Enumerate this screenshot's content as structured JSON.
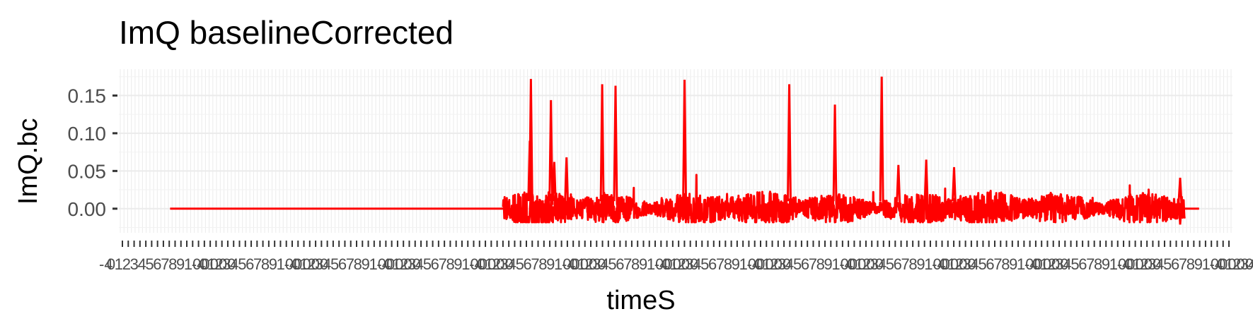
{
  "chart_data": {
    "type": "line",
    "title": "ImQ baselineCorrected",
    "xlabel": "timeS",
    "ylabel": "ImQ.bc",
    "ylim": [
      -0.032,
      0.185
    ],
    "yticks": [
      0.0,
      0.05,
      0.1,
      0.15
    ],
    "ytick_labels": [
      "0.00",
      "0.05",
      "0.10",
      "0.15"
    ],
    "x_category_axis": true,
    "x_tick_labels_overlapping": true,
    "xtick_labels_visible": [
      "-4",
      "0",
      "1",
      "2",
      "3",
      "4",
      "5",
      "6",
      "7",
      "8",
      "9",
      "100000"
    ],
    "grid": true,
    "color": "#ff0000",
    "series": [
      {
        "baseline_segment": {
          "x_fraction_start": 0.046,
          "x_fraction_end": 0.345,
          "y": 0.0
        },
        "noise_segment": {
          "x_fraction_start": 0.345,
          "x_fraction_end": 0.957,
          "y_min": -0.018,
          "y_max": 0.045
        },
        "tail_segment": {
          "x_fraction_start": 0.957,
          "x_fraction_end": 0.954,
          "y": 0.0
        },
        "peaks": [
          {
            "x_fraction": 0.37,
            "y": 0.172
          },
          {
            "x_fraction": 0.369,
            "y": 0.09
          },
          {
            "x_fraction": 0.388,
            "y": 0.144
          },
          {
            "x_fraction": 0.391,
            "y": 0.062
          },
          {
            "x_fraction": 0.402,
            "y": 0.068
          },
          {
            "x_fraction": 0.434,
            "y": 0.165
          },
          {
            "x_fraction": 0.446,
            "y": 0.163
          },
          {
            "x_fraction": 0.508,
            "y": 0.171
          },
          {
            "x_fraction": 0.602,
            "y": 0.165
          },
          {
            "x_fraction": 0.643,
            "y": 0.138
          },
          {
            "x_fraction": 0.685,
            "y": 0.175
          },
          {
            "x_fraction": 0.7,
            "y": 0.058
          },
          {
            "x_fraction": 0.725,
            "y": 0.065
          },
          {
            "x_fraction": 0.75,
            "y": 0.055
          },
          {
            "x_fraction": 0.953,
            "y": 0.041
          },
          {
            "x_fraction": 0.953,
            "y": -0.021
          }
        ]
      }
    ]
  }
}
